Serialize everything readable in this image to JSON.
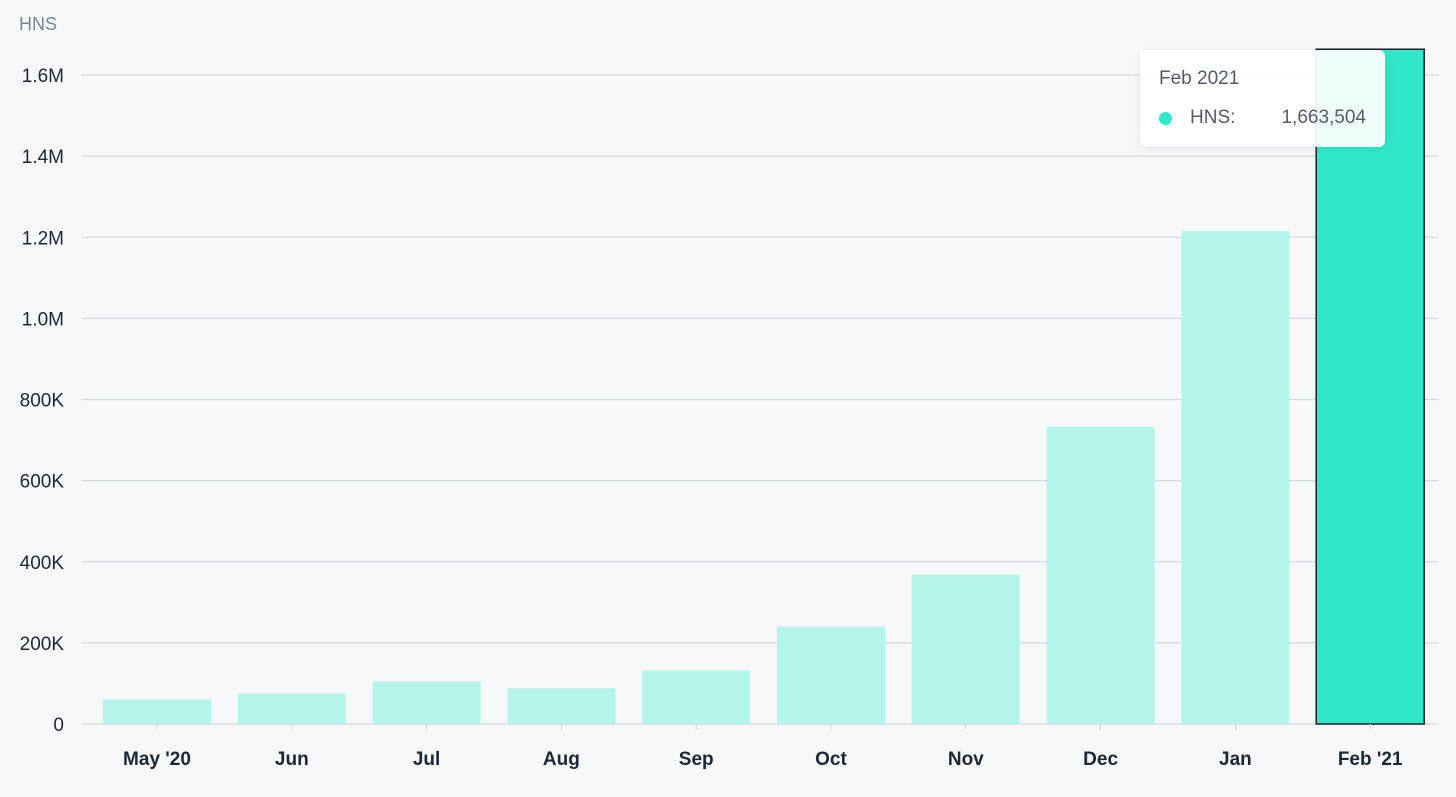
{
  "chart_data": {
    "type": "bar",
    "ylabel": "HNS",
    "categories": [
      "May '20",
      "Jun",
      "Jul",
      "Aug",
      "Sep",
      "Oct",
      "Nov",
      "Dec",
      "Jan",
      "Feb '21"
    ],
    "values": [
      60000,
      75000,
      105000,
      88000,
      132000,
      240000,
      368000,
      732000,
      1215000,
      1663504
    ],
    "ylim": [
      0,
      1600000
    ],
    "yticks": [
      0,
      200000,
      400000,
      600000,
      800000,
      1000000,
      1200000,
      1400000,
      1600000
    ],
    "ytick_labels": [
      "0",
      "200K",
      "400K",
      "600K",
      "800K",
      "1.0M",
      "1.2M",
      "1.4M",
      "1.6M"
    ],
    "grid": true,
    "highlighted_index": 9
  },
  "colors": {
    "bar": "#b4f4ea",
    "bar_highlight": "#2ee8c8",
    "grid": "#d3d7de",
    "text": "#1e2736",
    "muted": "#7a8594"
  },
  "tooltip": {
    "title": "Feb 2021",
    "series_label": "HNS:",
    "value": "1,663,504"
  }
}
